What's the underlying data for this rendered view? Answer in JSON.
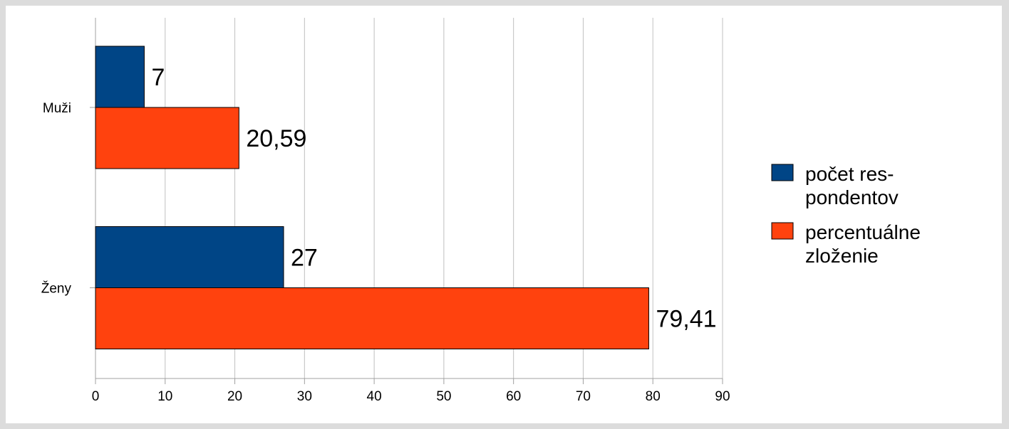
{
  "chart_data": {
    "type": "bar",
    "orientation": "horizontal",
    "categories": [
      "Muži",
      "Ženy"
    ],
    "series": [
      {
        "name": "počet respondentov",
        "legend_lines": [
          "počet res-",
          "pondentov"
        ],
        "values": [
          7,
          27
        ],
        "value_labels": [
          "7",
          "27"
        ],
        "color": "#004586"
      },
      {
        "name": "percentuálne zloženie",
        "legend_lines": [
          "percentuálne",
          "zloženie"
        ],
        "values": [
          20.59,
          79.41
        ],
        "value_labels": [
          "20,59",
          "79,41"
        ],
        "color": "#ff420e"
      }
    ],
    "x_ticks": [
      "0",
      "10",
      "20",
      "30",
      "40",
      "50",
      "60",
      "70",
      "80",
      "90"
    ],
    "xlim": [
      0,
      90
    ],
    "grid": true,
    "legend_position": "right"
  }
}
